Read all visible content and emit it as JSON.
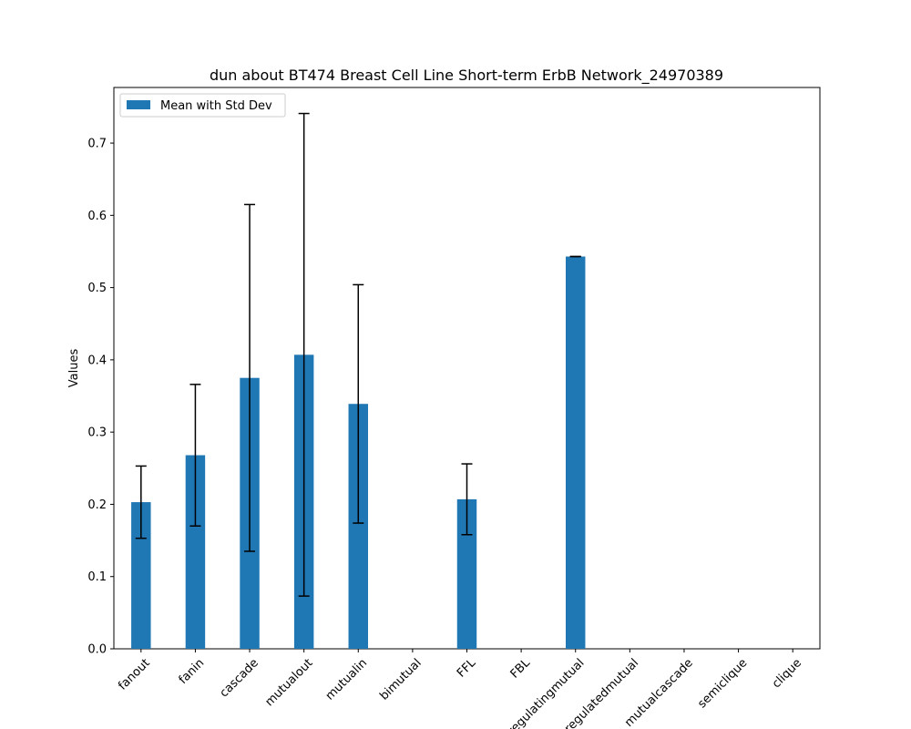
{
  "chart_data": {
    "type": "bar",
    "title": "dun about BT474 Breast Cell Line Short-term ErbB Network_24970389",
    "xlabel": "",
    "ylabel": "Values",
    "categories": [
      "fanout",
      "fanin",
      "cascade",
      "mutualout",
      "mutualin",
      "bimutual",
      "FFL",
      "FBL",
      "regulatingmutual",
      "regulatedmutual",
      "mutualcascade",
      "semiclique",
      "clique"
    ],
    "series": [
      {
        "name": "Mean with Std Dev",
        "values": [
          0.203,
          0.268,
          0.375,
          0.407,
          0.339,
          0,
          0.207,
          0,
          0.543,
          0,
          0,
          0,
          0
        ],
        "errors": [
          0.05,
          0.098,
          0.24,
          0.334,
          0.165,
          null,
          0.049,
          null,
          0.0,
          null,
          null,
          null,
          null
        ]
      }
    ],
    "ylim": [
      0,
      0.777
    ],
    "yticks": [
      "0.0",
      "0.1",
      "0.2",
      "0.3",
      "0.4",
      "0.5",
      "0.6",
      "0.7"
    ],
    "legend_position": "top-left",
    "grid": false,
    "colors": {
      "bar": "#1f77b4",
      "error": "#000000",
      "axis": "#000000"
    }
  }
}
